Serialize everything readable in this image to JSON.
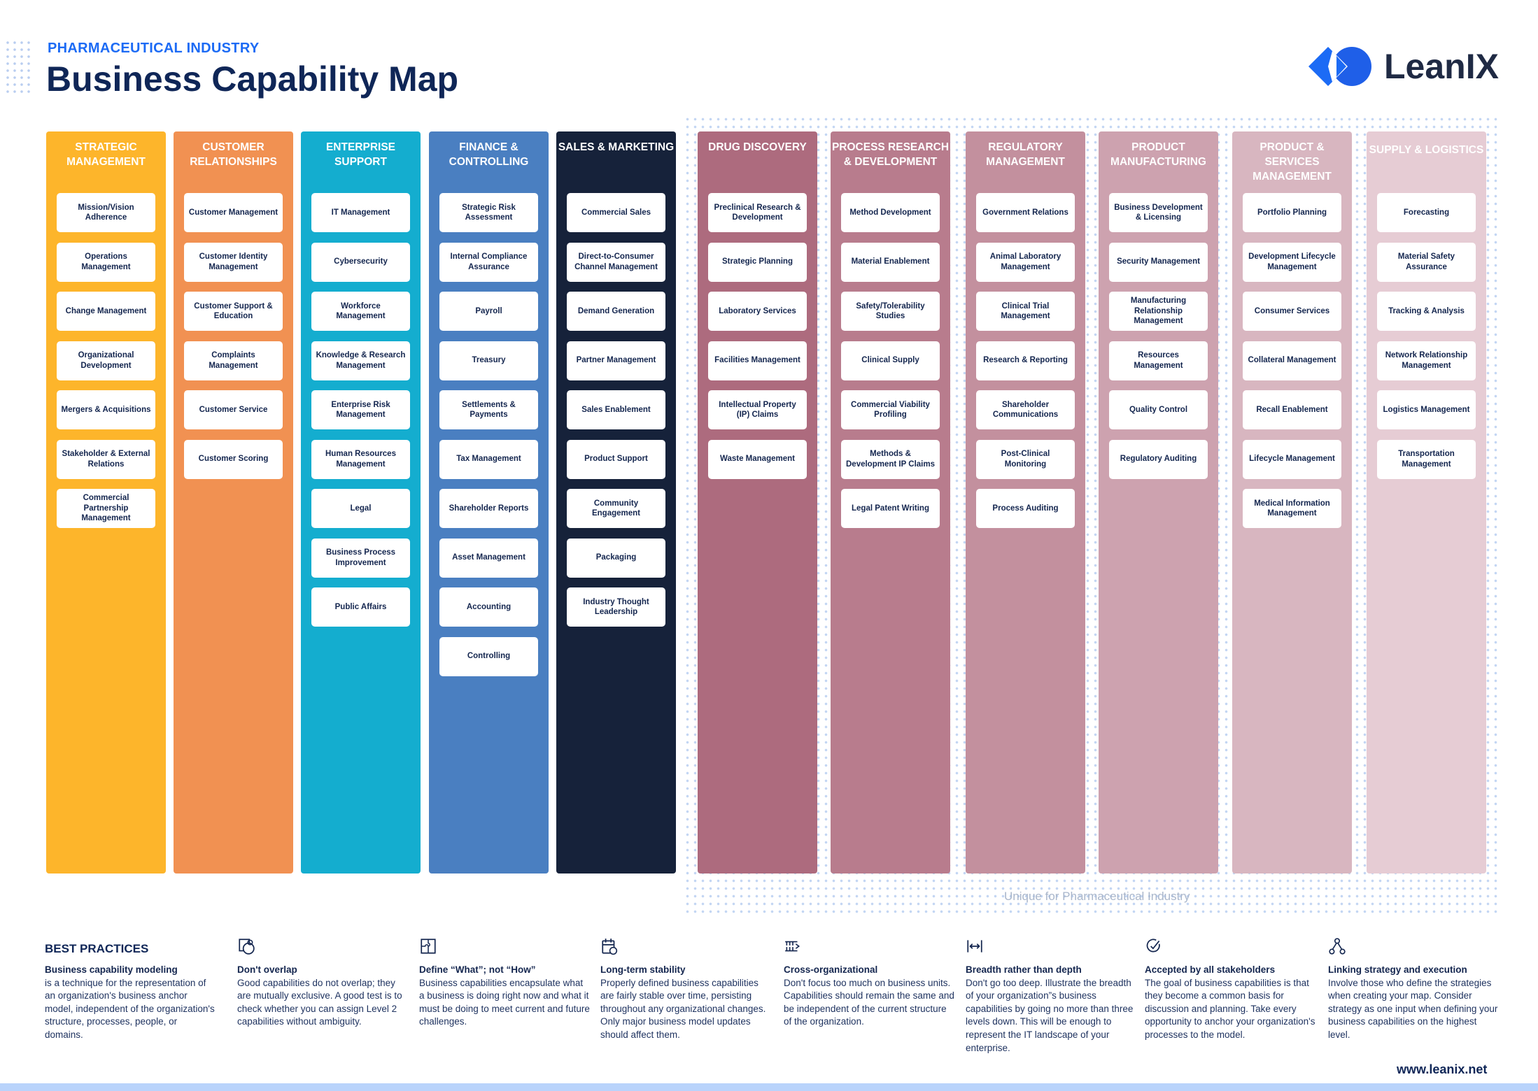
{
  "header": {
    "kicker": "PHARMACEUTICAL INDUSTRY",
    "title": "Business Capability Map",
    "logo_text": "LeanIX"
  },
  "colors": {
    "accent": "#1c6bf5",
    "navy": "#0f2657"
  },
  "unique_label": "Unique for Pharmaceutical Industry",
  "columns": [
    {
      "title": "Strategic Management",
      "color": "#fdb52b",
      "items": [
        "Mission/Vision Adherence",
        "Operations Management",
        "Change Management",
        "Organizational Development",
        "Mergers & Acquisitions",
        "Stakeholder & External Relations",
        "Commercial Partnership Management"
      ]
    },
    {
      "title": "Customer Relationships",
      "color": "#f19152",
      "items": [
        "Customer Management",
        "Customer Identity Management",
        "Customer Support & Education",
        "Complaints Management",
        "Customer Service",
        "Customer Scoring"
      ]
    },
    {
      "title": "Enterprise Support",
      "color": "#14adcf",
      "items": [
        "IT Management",
        "Cybersecurity",
        "Workforce Management",
        "Knowledge & Research Management",
        "Enterprise Risk Management",
        "Human Resources Management",
        "Legal",
        "Business Process Improvement",
        "Public Affairs"
      ]
    },
    {
      "title": "Finance & Controlling",
      "color": "#4a7fc1",
      "items": [
        "Strategic Risk Assessment",
        "Internal Compliance Assurance",
        "Payroll",
        "Treasury",
        "Settlements & Payments",
        "Tax Management",
        "Shareholder Reports",
        "Asset Management",
        "Accounting",
        "Controlling"
      ]
    },
    {
      "title": "Sales & Marketing",
      "color": "#16223a",
      "items": [
        "Commercial Sales",
        "Direct-to-Consumer Channel Management",
        "Demand Generation",
        "Partner Management",
        "Sales Enablement",
        "Product Support",
        "Community Engagement",
        "Packaging",
        "Industry Thought Leadership"
      ]
    },
    {
      "title": "Drug Discovery",
      "color": "#ad6b7e",
      "items": [
        "Preclinical Research & Development",
        "Strategic Planning",
        "Laboratory Services",
        "Facilities Management",
        "Intellectual Property (IP) Claims",
        "Waste Management"
      ]
    },
    {
      "title": "Process Research & Development",
      "color": "#b87c8d",
      "items": [
        "Method Development",
        "Material Enablement",
        "Safety/Tolerability Studies",
        "Clinical Supply",
        "Commercial Viability Profiling",
        "Methods & Development IP Claims",
        "Legal Patent Writing"
      ]
    },
    {
      "title": "Regulatory Management",
      "color": "#c3909e",
      "items": [
        "Government Relations",
        "Animal Laboratory Management",
        "Clinical Trial Management",
        "Research & Reporting",
        "Shareholder Communications",
        "Post-Clinical Monitoring",
        "Process Auditing"
      ]
    },
    {
      "title": "Product Manufacturing",
      "color": "#cda2af",
      "items": [
        "Business Development & Licensing",
        "Security Management",
        "Manufacturing Relationship Management",
        "Resources Management",
        "Quality Control",
        "Regulatory Auditing"
      ]
    },
    {
      "title": "Product & Services Management",
      "color": "#d8b6c0",
      "items": [
        "Portfolio Planning",
        "Development Lifecycle Management",
        "Consumer Services",
        "Collateral Management",
        "Recall Enablement",
        "Lifecycle Management",
        "Medical Information Management"
      ]
    },
    {
      "title": "Supply & Logistics",
      "color": "#e6ccd4",
      "items": [
        "Forecasting",
        "Material Safety Assurance",
        "Tracking & Analysis",
        "Network Relationship Management",
        "Logistics Management",
        "Transportation Management"
      ]
    }
  ],
  "best_practices": {
    "heading": "BEST PRACTICES",
    "items": [
      {
        "icon": "model-icon",
        "title": "Business capability modeling",
        "text": "is a technique for the representation of an organization's business anchor model, independent of the organization's structure, processes, people, or domains."
      },
      {
        "icon": "overlap-icon",
        "title": "Don't overlap",
        "text": "Good capabilities do not overlap; they are mutually exclusive. A good test is to check whether you can assign Level 2 capabilities without ambiguity."
      },
      {
        "icon": "puzzle-icon",
        "title": "Define “What”; not “How”",
        "text": "Business capabilities encapsulate what a business is doing right now and what it must be doing to meet current and future challenges."
      },
      {
        "icon": "calendar-icon",
        "title": "Long-term stability",
        "text": "Properly defined business capabilities are fairly stable over time, persisting throughout any organizational changes. Only major business model updates should affect them."
      },
      {
        "icon": "cross-org-icon",
        "title": "Cross-organizational",
        "text": "Don't focus too much on business units. Capabilities should remain the same and be independent of the current structure of the organization."
      },
      {
        "icon": "breadth-icon",
        "title": "Breadth rather than depth",
        "text": "Don't go too deep. Illustrate the breadth of your organization”s business capabilities by going no more than three levels down. This will be enough to represent the IT landscape of your enterprise."
      },
      {
        "icon": "check-circle-icon",
        "title": "Accepted by all stakeholders",
        "text": "The goal of business capabilities is that they become a common basis for discussion and planning. Take every opportunity to anchor your organization's processes to the model."
      },
      {
        "icon": "network-icon",
        "title": "Linking strategy and execution",
        "text": "Involve those who define the strategies when creating your map. Consider strategy as one input when defining your business capabilities on the highest level."
      }
    ]
  },
  "footer": {
    "url": "www.leanix.net"
  }
}
